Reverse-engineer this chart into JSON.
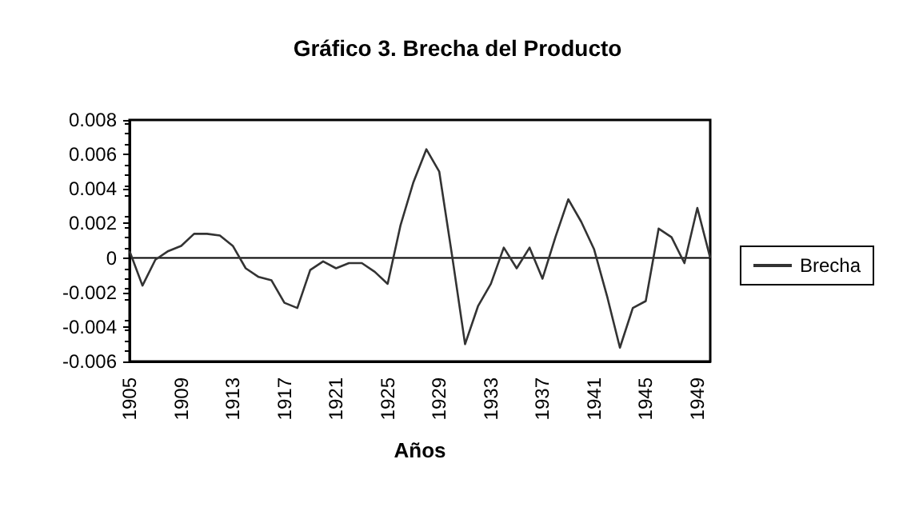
{
  "chart_data": {
    "type": "line",
    "title": "Gráfico 3. Brecha del Producto",
    "xlabel": "Años",
    "categories": [
      "1905",
      null,
      null,
      null,
      "1909",
      null,
      null,
      null,
      "1913",
      null,
      null,
      null,
      "1917",
      null,
      null,
      null,
      "1921",
      null,
      null,
      null,
      "1925",
      null,
      null,
      null,
      "1929",
      null,
      null,
      null,
      "1933",
      null,
      null,
      null,
      "1937",
      null,
      null,
      null,
      "1941",
      null,
      null,
      null,
      "1945",
      null,
      null,
      null,
      "1949",
      null
    ],
    "series": [
      {
        "name": "Brecha",
        "color": "#333333",
        "values": [
          0.0004,
          -0.0016,
          -0.0001,
          0.0004,
          0.0007,
          0.0014,
          0.0014,
          0.0013,
          0.0007,
          -0.0006,
          -0.0011,
          -0.0013,
          -0.0026,
          -0.0029,
          -0.0007,
          -0.0002,
          -0.0006,
          -0.0003,
          -0.0003,
          -0.0008,
          -0.0015,
          0.0019,
          0.0044,
          0.0063,
          0.005,
          0.0001,
          -0.005,
          -0.0028,
          -0.0015,
          0.0006,
          -0.0006,
          0.0006,
          -0.0012,
          0.0012,
          0.0034,
          0.0021,
          0.0005,
          -0.0022,
          -0.0052,
          -0.0029,
          -0.0025,
          0.0017,
          0.0012,
          -0.0003,
          0.0029,
          0
        ]
      }
    ],
    "ylim": [
      -0.006,
      0.008
    ],
    "yticks": [
      -0.006,
      -0.004,
      -0.002,
      0,
      0.002,
      0.004,
      0.006,
      0.008
    ],
    "ref_lines": [
      {
        "axis": "y",
        "value": 0,
        "color": "#000000"
      }
    ],
    "grid": false,
    "legend": "right",
    "marker": "none",
    "line_style": "solid"
  }
}
